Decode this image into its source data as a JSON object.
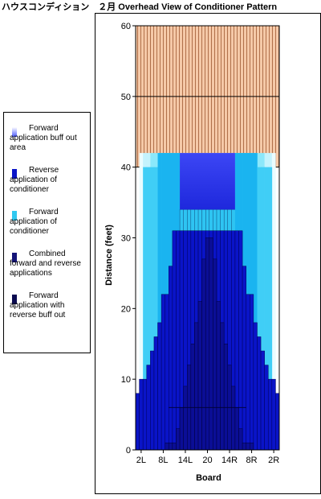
{
  "title": "ハウスコンディション　２月 Overhead View of Conditioner Pattern",
  "legend": {
    "items": [
      {
        "label": "Forward application buff out area",
        "color": "#4d5cff"
      },
      {
        "label": "Reverse application of conditioner",
        "color": "#0a14c8"
      },
      {
        "label": "Forward application of conditioner",
        "color": "#30c8f0"
      },
      {
        "label": "Combined forward and reverse applications",
        "color": "#141478"
      },
      {
        "label": "Forward application with reverse buff out",
        "color": "#0a0a50"
      }
    ]
  },
  "chart_data": {
    "type": "area",
    "title": "ハウスコンディション　２月 Overhead View of Conditioner Pattern",
    "xlabel": "Board",
    "ylabel": "Distance (feet)",
    "ylim": [
      0,
      60
    ],
    "yticks": [
      0,
      10,
      20,
      30,
      40,
      50,
      60
    ],
    "xticks": [
      "2L",
      "8L",
      "14L",
      "20",
      "14R",
      "8R",
      "2R"
    ],
    "boards": [
      "1L",
      "2L",
      "3L",
      "4L",
      "5L",
      "6L",
      "7L",
      "8L",
      "9L",
      "10L",
      "11L",
      "12L",
      "13L",
      "14L",
      "15L",
      "16L",
      "17L",
      "18L",
      "19L",
      "20",
      "19R",
      "18R",
      "17R",
      "16R",
      "15R",
      "14R",
      "13R",
      "12R",
      "11R",
      "10R",
      "9R",
      "8R",
      "7R",
      "6R",
      "5R",
      "4R",
      "3R",
      "2R",
      "1R"
    ],
    "grid": "horizontal lines at 40 and 50",
    "series": [
      {
        "name": "Forward application buff out area",
        "values": [
          0,
          42,
          42,
          42,
          42,
          42,
          42,
          42,
          42,
          42,
          42,
          42,
          42,
          42,
          42,
          42,
          42,
          42,
          42,
          42,
          42,
          42,
          42,
          42,
          42,
          42,
          42,
          42,
          42,
          42,
          42,
          42,
          42,
          42,
          42,
          42,
          42,
          42,
          0
        ]
      },
      {
        "name": "Forward application of conditioner",
        "values": [
          0,
          0,
          40,
          40,
          40,
          40,
          42,
          42,
          42,
          42,
          42,
          42,
          34,
          34,
          34,
          34,
          34,
          34,
          34,
          34,
          34,
          34,
          34,
          34,
          34,
          34,
          34,
          42,
          42,
          42,
          42,
          42,
          42,
          40,
          40,
          40,
          40,
          0,
          0
        ]
      },
      {
        "name": "Reverse application of conditioner",
        "values": [
          8,
          10,
          10,
          12,
          14,
          16,
          18,
          22,
          22,
          26,
          31,
          31,
          31,
          31,
          31,
          31,
          31,
          31,
          31,
          31,
          31,
          31,
          31,
          31,
          31,
          31,
          31,
          31,
          31,
          26,
          22,
          22,
          18,
          16,
          14,
          12,
          10,
          10,
          8
        ]
      },
      {
        "name": "Combined forward and reverse applications",
        "values": [
          0,
          0,
          0,
          0,
          0,
          0,
          0,
          0,
          1,
          1,
          1,
          3,
          6,
          9,
          12,
          15,
          18,
          21,
          27,
          30,
          30,
          27,
          21,
          18,
          15,
          12,
          9,
          6,
          3,
          1,
          1,
          1,
          0,
          0,
          0,
          0,
          0,
          0,
          0
        ]
      },
      {
        "name": "Forward application with reverse buff out",
        "values": [
          0,
          0,
          0,
          0,
          0,
          0,
          0,
          0,
          0,
          0,
          0,
          0,
          0,
          0,
          0,
          0,
          0,
          0,
          0,
          0,
          0,
          0,
          0,
          0,
          0,
          0,
          0,
          0,
          0,
          0,
          0,
          0,
          0,
          0,
          0,
          0,
          0,
          0,
          0
        ]
      }
    ],
    "oil_pattern_region": {
      "description": "hatched area above oil",
      "color": "#f5c9a8",
      "stripe_color": "#a06040",
      "from": 40,
      "to": 60,
      "inner_floor": 42
    }
  }
}
